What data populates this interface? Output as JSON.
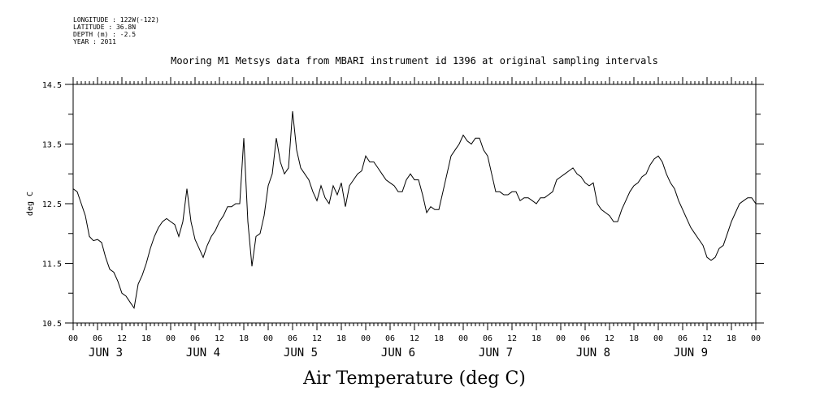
{
  "header": {
    "lines": [
      "LONGITUDE : 122W(-122)",
      "LATITUDE : 36.8N",
      "DEPTH (m) : -2.5",
      "YEAR : 2011"
    ]
  },
  "chart_data": {
    "type": "line",
    "title": "Mooring M1 Metsys data from MBARI instrument id 1396 at original sampling intervals",
    "xlabel": "Air Temperature (deg C)",
    "ylabel": "deg C",
    "ylim": [
      10.5,
      14.5
    ],
    "yticks": [
      "10.5",
      "11.5",
      "12.5",
      "13.5",
      "14.5"
    ],
    "xlim": [
      0,
      168
    ],
    "hour_tick_labels": [
      "00",
      "06",
      "12",
      "18"
    ],
    "day_labels": [
      "JUN 3",
      "JUN 4",
      "JUN 5",
      "JUN 6",
      "JUN 7",
      "JUN 8",
      "JUN 9"
    ],
    "x_units": "hours since 2011-06-03 00:00",
    "series": [
      {
        "name": "Air Temperature",
        "x": [
          0,
          1,
          2,
          3,
          4,
          5,
          6,
          7,
          8,
          9,
          10,
          11,
          12,
          13,
          14,
          15,
          16,
          17,
          18,
          19,
          20,
          21,
          22,
          23,
          24,
          25,
          26,
          27,
          28,
          29,
          30,
          31,
          32,
          33,
          34,
          35,
          36,
          37,
          38,
          39,
          40,
          41,
          42,
          43,
          44,
          45,
          46,
          47,
          48,
          49,
          50,
          51,
          52,
          53,
          54,
          55,
          56,
          57,
          58,
          59,
          60,
          61,
          62,
          63,
          64,
          65,
          66,
          67,
          68,
          69,
          70,
          71,
          72,
          73,
          74,
          75,
          76,
          77,
          78,
          79,
          80,
          81,
          82,
          83,
          84,
          85,
          86,
          87,
          88,
          89,
          90,
          91,
          92,
          93,
          94,
          95,
          96,
          97,
          98,
          99,
          100,
          101,
          102,
          103,
          104,
          105,
          106,
          107,
          108,
          109,
          110,
          111,
          112,
          113,
          114,
          115,
          116,
          117,
          118,
          119,
          120,
          121,
          122,
          123,
          124,
          125,
          126,
          127,
          128,
          129,
          130,
          131,
          132,
          133,
          134,
          135,
          136,
          137,
          138,
          139,
          140,
          141,
          142,
          143,
          144,
          145,
          146,
          147,
          148,
          149,
          150,
          151,
          152,
          153,
          154,
          155,
          156,
          157,
          158,
          159,
          160,
          161,
          162,
          163,
          164,
          165,
          166,
          167,
          168
        ],
        "y": [
          12.75,
          12.7,
          12.5,
          12.3,
          11.95,
          11.88,
          11.9,
          11.85,
          11.6,
          11.4,
          11.35,
          11.2,
          11.0,
          10.95,
          10.85,
          10.75,
          11.15,
          11.3,
          11.5,
          11.75,
          11.95,
          12.1,
          12.2,
          12.25,
          12.2,
          12.15,
          11.95,
          12.2,
          12.75,
          12.2,
          11.9,
          11.75,
          11.6,
          11.8,
          11.95,
          12.05,
          12.2,
          12.3,
          12.45,
          12.45,
          12.5,
          12.5,
          13.6,
          12.2,
          11.45,
          11.95,
          12.0,
          12.3,
          12.8,
          13.0,
          13.6,
          13.2,
          13.0,
          13.1,
          14.05,
          13.4,
          13.1,
          13.0,
          12.9,
          12.7,
          12.55,
          12.8,
          12.6,
          12.5,
          12.8,
          12.65,
          12.85,
          12.45,
          12.8,
          12.9,
          13.0,
          13.05,
          13.3,
          13.2,
          13.2,
          13.1,
          13.0,
          12.9,
          12.85,
          12.8,
          12.7,
          12.7,
          12.9,
          13.0,
          12.9,
          12.9,
          12.65,
          12.35,
          12.45,
          12.4,
          12.4,
          12.7,
          13.0,
          13.3,
          13.4,
          13.5,
          13.65,
          13.55,
          13.5,
          13.6,
          13.6,
          13.4,
          13.3,
          13.0,
          12.7,
          12.7,
          12.65,
          12.65,
          12.7,
          12.7,
          12.55,
          12.6,
          12.6,
          12.55,
          12.5,
          12.6,
          12.6,
          12.65,
          12.7,
          12.9,
          12.95,
          13.0,
          13.05,
          13.1,
          13.0,
          12.95,
          12.85,
          12.8,
          12.85,
          12.5,
          12.4,
          12.35,
          12.3,
          12.2,
          12.2,
          12.4,
          12.55,
          12.7,
          12.8,
          12.85,
          12.95,
          13.0,
          13.15,
          13.25,
          13.3,
          13.2,
          13.0,
          12.85,
          12.75,
          12.55,
          12.4,
          12.25,
          12.1,
          12.0,
          11.9,
          11.8,
          11.6,
          11.55,
          11.6,
          11.75,
          11.8,
          12.0,
          12.2,
          12.35,
          12.5,
          12.55,
          12.6,
          12.6,
          12.5
        ]
      }
    ]
  }
}
